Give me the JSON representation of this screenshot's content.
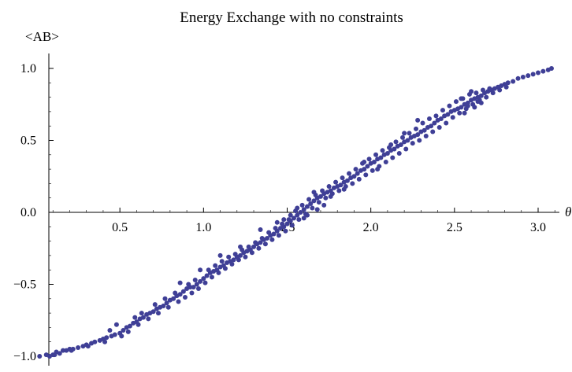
{
  "chart_data": {
    "type": "scatter",
    "title": "Energy Exchange with no constraints",
    "xlabel": "θ",
    "ylabel": "<AB>",
    "xlim": [
      0,
      3.1416
    ],
    "ylim": [
      -1.05,
      1.05
    ],
    "x_ticks": [
      {
        "value": 0.5,
        "label": "0.5"
      },
      {
        "value": 1.0,
        "label": "1.0"
      },
      {
        "value": 1.5,
        "label": "1.5"
      },
      {
        "value": 2.0,
        "label": "2.0"
      },
      {
        "value": 2.5,
        "label": "2.5"
      },
      {
        "value": 3.0,
        "label": "3.0"
      }
    ],
    "y_ticks": [
      {
        "value": 1.0,
        "label": "1.0"
      },
      {
        "value": 0.5,
        "label": "0.5"
      },
      {
        "value": 0.0,
        "label": "0.0"
      },
      {
        "value": -0.5,
        "label": "−0.5"
      },
      {
        "value": -1.0,
        "label": "−1.0"
      }
    ],
    "grid": false,
    "marker_color": "#3f3f96",
    "points": [
      [
        0.02,
        -1.0
      ],
      [
        0.06,
        -0.99
      ],
      [
        0.08,
        -1.0
      ],
      [
        0.1,
        -0.99
      ],
      [
        0.12,
        -0.97
      ],
      [
        0.14,
        -0.98
      ],
      [
        0.16,
        -0.96
      ],
      [
        0.18,
        -0.96
      ],
      [
        0.2,
        -0.95
      ],
      [
        0.22,
        -0.95
      ],
      [
        0.25,
        -0.94
      ],
      [
        0.28,
        -0.93
      ],
      [
        0.3,
        -0.92
      ],
      [
        0.33,
        -0.91
      ],
      [
        0.35,
        -0.9
      ],
      [
        0.38,
        -0.89
      ],
      [
        0.4,
        -0.88
      ],
      [
        0.42,
        -0.87
      ],
      [
        0.45,
        -0.86
      ],
      [
        0.47,
        -0.85
      ],
      [
        0.5,
        -0.84
      ],
      [
        0.52,
        -0.82
      ],
      [
        0.54,
        -0.8
      ],
      [
        0.56,
        -0.79
      ],
      [
        0.58,
        -0.77
      ],
      [
        0.6,
        -0.76
      ],
      [
        0.62,
        -0.74
      ],
      [
        0.64,
        -0.73
      ],
      [
        0.66,
        -0.71
      ],
      [
        0.68,
        -0.7
      ],
      [
        0.7,
        -0.69
      ],
      [
        0.72,
        -0.67
      ],
      [
        0.74,
        -0.66
      ],
      [
        0.76,
        -0.65
      ],
      [
        0.78,
        -0.63
      ],
      [
        0.8,
        -0.61
      ],
      [
        0.82,
        -0.6
      ],
      [
        0.84,
        -0.58
      ],
      [
        0.86,
        -0.57
      ],
      [
        0.88,
        -0.55
      ],
      [
        0.9,
        -0.53
      ],
      [
        0.92,
        -0.52
      ],
      [
        0.94,
        -0.52
      ],
      [
        0.96,
        -0.5
      ],
      [
        0.98,
        -0.48
      ],
      [
        1.0,
        -0.46
      ],
      [
        1.02,
        -0.44
      ],
      [
        1.04,
        -0.42
      ],
      [
        1.06,
        -0.41
      ],
      [
        1.08,
        -0.4
      ],
      [
        1.1,
        -0.38
      ],
      [
        1.12,
        -0.37
      ],
      [
        1.14,
        -0.35
      ],
      [
        1.16,
        -0.34
      ],
      [
        1.18,
        -0.33
      ],
      [
        1.2,
        -0.31
      ],
      [
        1.22,
        -0.3
      ],
      [
        1.24,
        -0.28
      ],
      [
        1.26,
        -0.27
      ],
      [
        1.28,
        -0.26
      ],
      [
        1.3,
        -0.24
      ],
      [
        1.32,
        -0.22
      ],
      [
        1.34,
        -0.21
      ],
      [
        1.36,
        -0.19
      ],
      [
        1.38,
        -0.18
      ],
      [
        1.4,
        -0.16
      ],
      [
        1.42,
        -0.15
      ],
      [
        1.44,
        -0.13
      ],
      [
        1.46,
        -0.11
      ],
      [
        1.48,
        -0.1
      ],
      [
        1.5,
        -0.08
      ],
      [
        1.52,
        -0.06
      ],
      [
        1.54,
        -0.04
      ],
      [
        1.56,
        -0.02
      ],
      [
        1.58,
        0.0
      ],
      [
        1.6,
        0.02
      ],
      [
        1.62,
        0.04
      ],
      [
        1.64,
        0.06
      ],
      [
        1.66,
        0.08
      ],
      [
        1.68,
        0.1
      ],
      [
        1.7,
        0.11
      ],
      [
        1.72,
        0.13
      ],
      [
        1.74,
        0.14
      ],
      [
        1.76,
        0.15
      ],
      [
        1.78,
        0.17
      ],
      [
        1.8,
        0.18
      ],
      [
        1.82,
        0.19
      ],
      [
        1.84,
        0.21
      ],
      [
        1.86,
        0.22
      ],
      [
        1.88,
        0.24
      ],
      [
        1.9,
        0.25
      ],
      [
        1.92,
        0.27
      ],
      [
        1.94,
        0.29
      ],
      [
        1.96,
        0.3
      ],
      [
        1.98,
        0.32
      ],
      [
        2.0,
        0.34
      ],
      [
        2.02,
        0.35
      ],
      [
        2.04,
        0.37
      ],
      [
        2.06,
        0.38
      ],
      [
        2.08,
        0.4
      ],
      [
        2.1,
        0.41
      ],
      [
        2.12,
        0.43
      ],
      [
        2.14,
        0.44
      ],
      [
        2.16,
        0.46
      ],
      [
        2.18,
        0.47
      ],
      [
        2.2,
        0.49
      ],
      [
        2.22,
        0.5
      ],
      [
        2.24,
        0.52
      ],
      [
        2.26,
        0.53
      ],
      [
        2.28,
        0.54
      ],
      [
        2.3,
        0.56
      ],
      [
        2.32,
        0.57
      ],
      [
        2.34,
        0.59
      ],
      [
        2.36,
        0.6
      ],
      [
        2.38,
        0.62
      ],
      [
        2.4,
        0.64
      ],
      [
        2.42,
        0.65
      ],
      [
        2.44,
        0.67
      ],
      [
        2.46,
        0.68
      ],
      [
        2.48,
        0.7
      ],
      [
        2.5,
        0.71
      ],
      [
        2.52,
        0.72
      ],
      [
        2.54,
        0.73
      ],
      [
        2.56,
        0.75
      ],
      [
        2.58,
        0.76
      ],
      [
        2.6,
        0.78
      ],
      [
        2.62,
        0.79
      ],
      [
        2.64,
        0.8
      ],
      [
        2.66,
        0.81
      ],
      [
        2.68,
        0.83
      ],
      [
        2.7,
        0.84
      ],
      [
        2.72,
        0.85
      ],
      [
        2.74,
        0.86
      ],
      [
        2.76,
        0.87
      ],
      [
        2.78,
        0.88
      ],
      [
        2.8,
        0.89
      ],
      [
        2.82,
        0.9
      ],
      [
        2.85,
        0.91
      ],
      [
        2.88,
        0.93
      ],
      [
        2.91,
        0.94
      ],
      [
        2.94,
        0.95
      ],
      [
        2.97,
        0.96
      ],
      [
        3.0,
        0.97
      ],
      [
        3.03,
        0.98
      ],
      [
        3.06,
        0.99
      ],
      [
        3.08,
        1.0
      ],
      [
        0.11,
        -0.99
      ],
      [
        0.21,
        -0.96
      ],
      [
        0.31,
        -0.93
      ],
      [
        0.41,
        -0.9
      ],
      [
        0.51,
        -0.86
      ],
      [
        0.55,
        -0.83
      ],
      [
        0.61,
        -0.78
      ],
      [
        0.67,
        -0.74
      ],
      [
        0.73,
        -0.7
      ],
      [
        0.79,
        -0.66
      ],
      [
        0.85,
        -0.62
      ],
      [
        0.89,
        -0.59
      ],
      [
        0.93,
        -0.56
      ],
      [
        0.97,
        -0.53
      ],
      [
        1.01,
        -0.49
      ],
      [
        1.05,
        -0.45
      ],
      [
        1.09,
        -0.42
      ],
      [
        1.13,
        -0.39
      ],
      [
        1.17,
        -0.36
      ],
      [
        1.21,
        -0.33
      ],
      [
        1.25,
        -0.31
      ],
      [
        1.29,
        -0.28
      ],
      [
        1.33,
        -0.25
      ],
      [
        1.37,
        -0.22
      ],
      [
        1.41,
        -0.19
      ],
      [
        1.45,
        -0.16
      ],
      [
        1.49,
        -0.13
      ],
      [
        1.53,
        -0.09
      ],
      [
        1.57,
        -0.05
      ],
      [
        1.61,
        -0.01
      ],
      [
        1.65,
        0.03
      ],
      [
        1.69,
        0.07
      ],
      [
        1.73,
        0.1
      ],
      [
        1.77,
        0.13
      ],
      [
        1.81,
        0.15
      ],
      [
        1.85,
        0.18
      ],
      [
        1.89,
        0.2
      ],
      [
        1.93,
        0.23
      ],
      [
        1.97,
        0.26
      ],
      [
        2.01,
        0.29
      ],
      [
        2.05,
        0.32
      ],
      [
        2.09,
        0.35
      ],
      [
        2.13,
        0.38
      ],
      [
        2.17,
        0.41
      ],
      [
        2.21,
        0.44
      ],
      [
        2.25,
        0.48
      ],
      [
        2.29,
        0.5
      ],
      [
        2.33,
        0.53
      ],
      [
        2.37,
        0.56
      ],
      [
        2.41,
        0.59
      ],
      [
        2.45,
        0.62
      ],
      [
        2.49,
        0.66
      ],
      [
        2.53,
        0.69
      ],
      [
        2.57,
        0.72
      ],
      [
        2.61,
        0.75
      ],
      [
        2.65,
        0.78
      ],
      [
        2.69,
        0.8
      ],
      [
        2.73,
        0.83
      ],
      [
        2.77,
        0.85
      ],
      [
        2.81,
        0.87
      ],
      [
        0.59,
        -0.73
      ],
      [
        0.63,
        -0.7
      ],
      [
        0.71,
        -0.64
      ],
      [
        0.77,
        -0.6
      ],
      [
        0.83,
        -0.56
      ],
      [
        0.91,
        -0.5
      ],
      [
        0.95,
        -0.47
      ],
      [
        1.03,
        -0.4
      ],
      [
        1.07,
        -0.37
      ],
      [
        1.11,
        -0.34
      ],
      [
        1.15,
        -0.31
      ],
      [
        1.19,
        -0.29
      ],
      [
        1.23,
        -0.26
      ],
      [
        1.27,
        -0.24
      ],
      [
        1.31,
        -0.21
      ],
      [
        1.35,
        -0.18
      ],
      [
        1.39,
        -0.14
      ],
      [
        1.43,
        -0.11
      ],
      [
        1.47,
        -0.08
      ],
      [
        1.51,
        -0.05
      ],
      [
        1.55,
        0.01
      ],
      [
        1.59,
        0.05
      ],
      [
        1.63,
        0.09
      ],
      [
        1.67,
        0.12
      ],
      [
        1.71,
        0.15
      ],
      [
        1.75,
        0.18
      ],
      [
        1.79,
        0.21
      ],
      [
        1.83,
        0.24
      ],
      [
        1.87,
        0.27
      ],
      [
        1.91,
        0.3
      ],
      [
        1.95,
        0.34
      ],
      [
        1.99,
        0.37
      ],
      [
        2.03,
        0.4
      ],
      [
        2.07,
        0.43
      ],
      [
        2.11,
        0.45
      ],
      [
        2.15,
        0.49
      ],
      [
        2.19,
        0.52
      ],
      [
        2.23,
        0.55
      ],
      [
        2.27,
        0.58
      ],
      [
        2.31,
        0.62
      ],
      [
        2.35,
        0.65
      ],
      [
        2.39,
        0.67
      ],
      [
        2.43,
        0.71
      ],
      [
        2.47,
        0.74
      ],
      [
        2.51,
        0.77
      ],
      [
        2.55,
        0.79
      ],
      [
        2.59,
        0.82
      ],
      [
        2.63,
        0.83
      ],
      [
        2.67,
        0.85
      ],
      [
        2.71,
        0.86
      ],
      [
        1.66,
        0.14
      ],
      [
        1.76,
        0.11
      ],
      [
        1.84,
        0.16
      ],
      [
        1.96,
        0.35
      ],
      [
        2.04,
        0.3
      ],
      [
        2.12,
        0.47
      ],
      [
        2.2,
        0.55
      ],
      [
        2.28,
        0.64
      ],
      [
        2.56,
        0.69
      ],
      [
        2.6,
        0.84
      ],
      [
        2.62,
        0.73
      ],
      [
        2.58,
        0.74
      ],
      [
        2.64,
        0.77
      ],
      [
        2.66,
        0.76
      ],
      [
        2.54,
        0.79
      ],
      [
        1.34,
        -0.12
      ],
      [
        1.22,
        -0.24
      ],
      [
        1.1,
        -0.3
      ],
      [
        0.98,
        -0.4
      ],
      [
        0.86,
        -0.49
      ],
      [
        1.6,
        -0.04
      ],
      [
        1.62,
        -0.02
      ],
      [
        1.56,
        0.03
      ],
      [
        1.52,
        -0.02
      ],
      [
        1.48,
        -0.05
      ],
      [
        1.44,
        -0.07
      ],
      [
        1.72,
        0.05
      ],
      [
        1.68,
        0.02
      ],
      [
        0.44,
        -0.82
      ],
      [
        0.48,
        -0.78
      ]
    ]
  }
}
